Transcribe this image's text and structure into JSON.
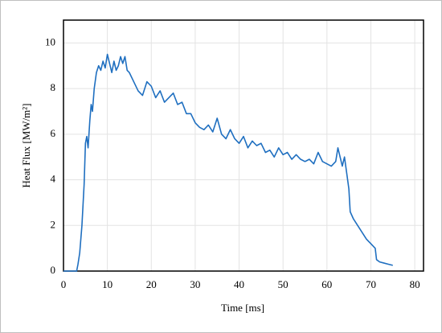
{
  "chart_data": {
    "type": "line",
    "xlabel": "Time [ms]",
    "ylabel": "Heat Flux [MW/m²]",
    "x": [
      0,
      3,
      3.3,
      3.7,
      4.2,
      4.7,
      5,
      5.3,
      5.6,
      6,
      6.3,
      6.6,
      7,
      7.5,
      8,
      8.5,
      9,
      9.5,
      10,
      10.5,
      11,
      11.5,
      12,
      12.5,
      13,
      13.5,
      14,
      14.5,
      15,
      16,
      17,
      18,
      19,
      20,
      21,
      22,
      23,
      24,
      25,
      26,
      27,
      28,
      29,
      30,
      31,
      32,
      33,
      34,
      35,
      36,
      37,
      38,
      39,
      40,
      41,
      42,
      43,
      44,
      45,
      46,
      47,
      48,
      49,
      50,
      51,
      52,
      53,
      54,
      55,
      56,
      57,
      58,
      59,
      60,
      61,
      62,
      62.5,
      63,
      63.5,
      64,
      64.5,
      65,
      65.3,
      66,
      67,
      68,
      69,
      70,
      71,
      71.3,
      72,
      73,
      74,
      75
    ],
    "values": [
      0,
      0,
      0.3,
      0.8,
      2,
      3.8,
      5.6,
      5.9,
      5.4,
      6.6,
      7.3,
      7,
      8,
      8.7,
      9,
      8.8,
      9.2,
      8.9,
      9.5,
      9.1,
      8.7,
      9.2,
      8.8,
      9,
      9.4,
      9.1,
      9.4,
      8.8,
      8.7,
      8.3,
      7.9,
      7.7,
      8.3,
      8.1,
      7.6,
      7.9,
      7.4,
      7.6,
      7.8,
      7.3,
      7.4,
      6.9,
      6.9,
      6.5,
      6.3,
      6.2,
      6.4,
      6.1,
      6.7,
      6,
      5.8,
      6.2,
      5.8,
      5.6,
      5.9,
      5.4,
      5.7,
      5.5,
      5.6,
      5.2,
      5.3,
      5,
      5.4,
      5.1,
      5.2,
      4.9,
      5.1,
      4.9,
      4.8,
      4.9,
      4.7,
      5.2,
      4.8,
      4.7,
      4.6,
      4.8,
      5.4,
      5,
      4.6,
      5,
      4.3,
      3.6,
      2.6,
      2.3,
      2,
      1.7,
      1.4,
      1.2,
      1,
      0.5,
      0.4,
      0.35,
      0.3,
      0.25
    ],
    "color": "#1f6fc0",
    "xlim": [
      0,
      82
    ],
    "ylim": [
      0,
      11
    ],
    "xticks": [
      0,
      10,
      20,
      30,
      40,
      50,
      60,
      70,
      80
    ],
    "yticks": [
      0,
      2,
      4,
      6,
      8,
      10
    ],
    "grid": true
  }
}
